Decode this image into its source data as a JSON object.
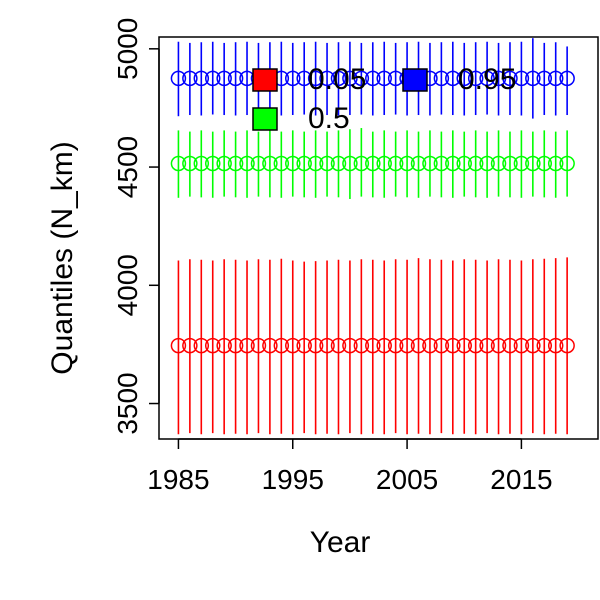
{
  "chart_data": {
    "type": "scatter",
    "title": "",
    "xlabel": "Year",
    "ylabel": "Quantiles (N_km)",
    "xlim": [
      1983.3,
      2021.7
    ],
    "ylim": [
      3350,
      5050
    ],
    "x_ticks": [
      1985,
      1995,
      2005,
      2015
    ],
    "x_tick_labels": [
      "1985",
      "1995",
      "2005",
      "2015"
    ],
    "y_ticks": [
      3500,
      4000,
      4500,
      5000
    ],
    "y_tick_labels": [
      "3500",
      "4000",
      "4500",
      "5000"
    ],
    "grid": false,
    "legend_position": "top-center",
    "x": [
      1985,
      1986,
      1987,
      1988,
      1989,
      1990,
      1991,
      1992,
      1993,
      1994,
      1995,
      1996,
      1997,
      1998,
      1999,
      2000,
      2001,
      2002,
      2003,
      2004,
      2005,
      2006,
      2007,
      2008,
      2009,
      2010,
      2011,
      2012,
      2013,
      2014,
      2015,
      2016,
      2017,
      2018,
      2019
    ],
    "series": [
      {
        "name": "0.05",
        "color": "#ff0000",
        "values": [
          3745,
          3745,
          3745,
          3745,
          3745,
          3745,
          3745,
          3745,
          3745,
          3745,
          3745,
          3745,
          3745,
          3745,
          3745,
          3745,
          3745,
          3745,
          3745,
          3745,
          3745,
          3745,
          3745,
          3745,
          3745,
          3745,
          3745,
          3745,
          3745,
          3745,
          3745,
          3745,
          3745,
          3745,
          3745
        ],
        "lower": [
          3370,
          3375,
          3370,
          3375,
          3370,
          3372,
          3370,
          3375,
          3370,
          3372,
          3370,
          3375,
          3370,
          3372,
          3370,
          3375,
          3370,
          3372,
          3370,
          3375,
          3370,
          3372,
          3370,
          3375,
          3370,
          3372,
          3370,
          3375,
          3370,
          3372,
          3370,
          3375,
          3370,
          3372,
          3370
        ],
        "upper": [
          4105,
          4110,
          4108,
          4105,
          4110,
          4108,
          4105,
          4110,
          4108,
          4112,
          4105,
          4100,
          4102,
          4105,
          4108,
          4105,
          4110,
          4108,
          4105,
          4110,
          4108,
          4115,
          4110,
          4108,
          4105,
          4110,
          4108,
          4105,
          4110,
          4108,
          4105,
          4110,
          4112,
          4115,
          4118
        ]
      },
      {
        "name": "0.95",
        "color": "#0000ff",
        "values": [
          4875,
          4875,
          4875,
          4875,
          4875,
          4875,
          4875,
          4875,
          4875,
          4875,
          4875,
          4875,
          4875,
          4875,
          4875,
          4875,
          4875,
          4875,
          4875,
          4875,
          4875,
          4875,
          4875,
          4875,
          4875,
          4875,
          4875,
          4875,
          4875,
          4875,
          4875,
          4875,
          4875,
          4875,
          4875
        ],
        "lower": [
          4715,
          4720,
          4718,
          4722,
          4720,
          4718,
          4720,
          4722,
          4720,
          4718,
          4720,
          4722,
          4718,
          4720,
          4718,
          4720,
          4722,
          4718,
          4720,
          4722,
          4718,
          4720,
          4718,
          4722,
          4720,
          4718,
          4720,
          4722,
          4718,
          4720,
          4718,
          4705,
          4720,
          4718,
          4720
        ],
        "upper": [
          5030,
          5025,
          5028,
          5030,
          5025,
          5028,
          5030,
          5025,
          5028,
          5030,
          5025,
          5028,
          5030,
          5025,
          5028,
          5030,
          5025,
          5028,
          5030,
          5025,
          5028,
          5030,
          5025,
          5028,
          5030,
          5025,
          5028,
          5030,
          5025,
          5028,
          5030,
          5045,
          5025,
          5028,
          5010
        ]
      },
      {
        "name": "0.5",
        "color": "#00ff00",
        "values": [
          4515,
          4515,
          4515,
          4515,
          4515,
          4515,
          4515,
          4515,
          4515,
          4515,
          4515,
          4515,
          4515,
          4515,
          4515,
          4515,
          4515,
          4515,
          4515,
          4515,
          4515,
          4515,
          4515,
          4515,
          4515,
          4515,
          4515,
          4515,
          4515,
          4515,
          4515,
          4515,
          4515,
          4515,
          4515
        ],
        "lower": [
          4370,
          4375,
          4372,
          4370,
          4375,
          4372,
          4370,
          4375,
          4372,
          4370,
          4375,
          4372,
          4370,
          4375,
          4372,
          4365,
          4375,
          4372,
          4370,
          4375,
          4372,
          4370,
          4375,
          4372,
          4370,
          4375,
          4372,
          4370,
          4375,
          4372,
          4370,
          4375,
          4372,
          4370,
          4375
        ],
        "upper": [
          4655,
          4650,
          4655,
          4650,
          4655,
          4650,
          4655,
          4650,
          4655,
          4650,
          4655,
          4650,
          4655,
          4650,
          4655,
          4660,
          4665,
          4650,
          4655,
          4650,
          4655,
          4650,
          4655,
          4650,
          4655,
          4650,
          4655,
          4650,
          4655,
          4650,
          4655,
          4650,
          4655,
          4650,
          4655
        ]
      }
    ]
  }
}
